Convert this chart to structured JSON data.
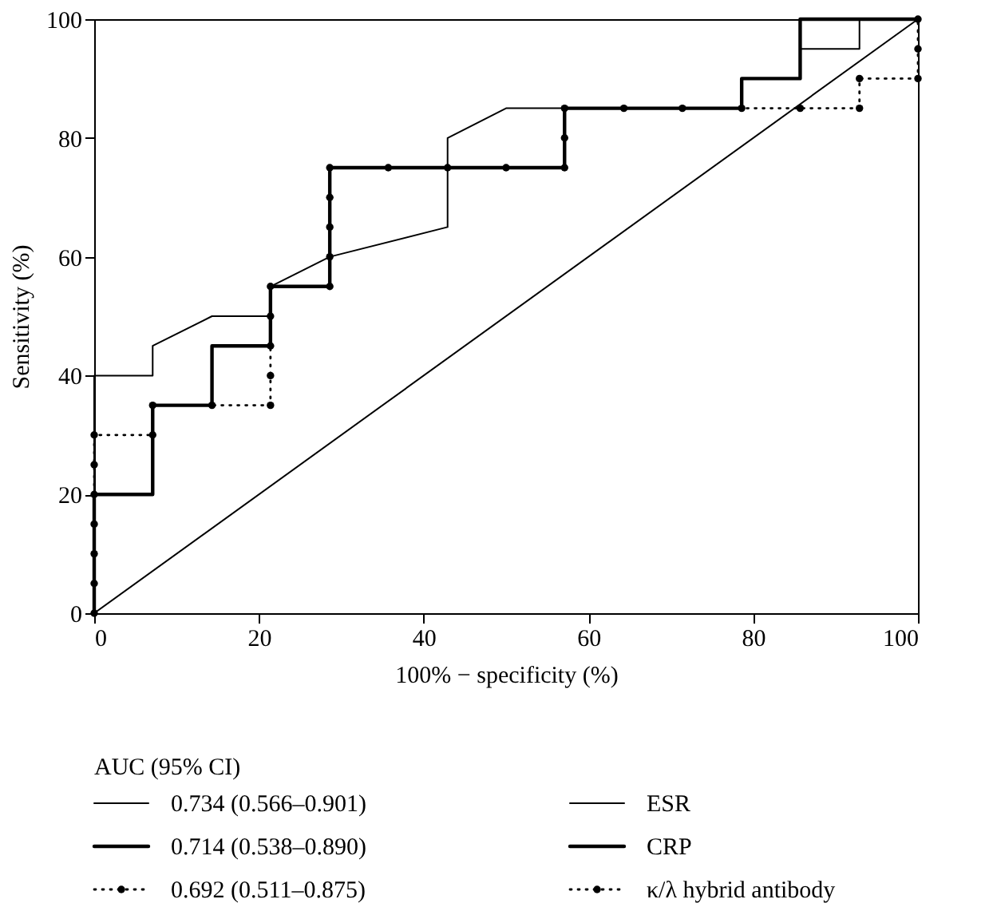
{
  "chart_data": {
    "type": "line",
    "xlabel": "100% − specificity (%)",
    "ylabel": "Sensitivity (%)",
    "legend_title": "AUC (95% CI)",
    "legend": "bottom",
    "grid": false,
    "xlim": [
      0,
      100
    ],
    "ylim": [
      0,
      100
    ],
    "xticks": [
      0,
      20,
      40,
      60,
      80,
      100
    ],
    "yticks": [
      0,
      20,
      40,
      60,
      80,
      100
    ],
    "annotations": [
      "0.734 (0.566–0.901)",
      "0.714 (0.538–0.890)",
      "0.692 (0.511–0.875)"
    ],
    "series": [
      {
        "name": "ESR",
        "color": "#000000",
        "line_style": "solid",
        "marker": "none",
        "x": [
          0,
          0,
          7.1,
          7.1,
          14.3,
          21.4,
          21.4,
          28.6,
          42.9,
          42.9,
          50,
          78.6,
          78.6,
          85.7,
          85.7,
          92.9,
          92.9,
          100
        ],
        "values": [
          0,
          40,
          40,
          45,
          50,
          50,
          55,
          60,
          65,
          80,
          85,
          85,
          90,
          90,
          95,
          95,
          100,
          100
        ]
      },
      {
        "name": "CRP",
        "color": "#000000",
        "line_style": "solid",
        "marker": "none",
        "x": [
          0,
          0,
          7.1,
          7.1,
          14.3,
          14.3,
          21.4,
          21.4,
          28.6,
          28.6,
          57.1,
          57.1,
          78.6,
          78.6,
          85.7,
          85.7,
          100
        ],
        "values": [
          0,
          20,
          20,
          35,
          35,
          45,
          45,
          55,
          55,
          75,
          75,
          85,
          85,
          90,
          90,
          100,
          100
        ]
      },
      {
        "name": "κ/λ hybrid antibody",
        "color": "#000000",
        "line_style": "dotted",
        "marker": "circle",
        "x": [
          0,
          0,
          0,
          0,
          0,
          0,
          0,
          7.1,
          7.1,
          14.3,
          21.4,
          21.4,
          21.4,
          21.4,
          21.4,
          28.6,
          28.6,
          28.6,
          28.6,
          28.6,
          35.7,
          42.9,
          50,
          57.1,
          57.1,
          57.1,
          64.3,
          71.4,
          78.6,
          85.7,
          92.9,
          92.9,
          100,
          100,
          100
        ],
        "values": [
          0,
          5,
          10,
          15,
          20,
          25,
          30,
          30,
          35,
          35,
          35,
          40,
          45,
          50,
          55,
          55,
          60,
          65,
          70,
          75,
          75,
          75,
          75,
          75,
          80,
          85,
          85,
          85,
          85,
          85,
          85,
          90,
          90,
          95,
          100
        ]
      },
      {
        "color": "#000000",
        "line_style": "solid",
        "marker": "none",
        "x": [
          0,
          100
        ],
        "values": [
          0,
          100
        ]
      }
    ]
  }
}
